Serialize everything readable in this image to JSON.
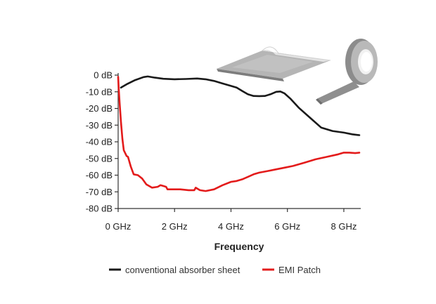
{
  "chart_data": {
    "type": "line",
    "title": "",
    "xlabel": "Frequency",
    "ylabel": "",
    "xlim": [
      0,
      8.6
    ],
    "ylim": [
      -80,
      0
    ],
    "x_ticks": [
      0,
      2,
      4,
      6,
      8
    ],
    "x_tick_labels": [
      "0 GHz",
      "2 GHz",
      "4 GHz",
      "6 GHz",
      "8 GHz"
    ],
    "y_ticks": [
      0,
      -10,
      -20,
      -30,
      -40,
      -50,
      -60,
      -70,
      -80
    ],
    "y_tick_labels": [
      "0 dB",
      "-10 dB",
      "-20 dB",
      "-30 dB",
      "-40 dB",
      "-50 dB",
      "-60 dB",
      "-70 dB",
      "-80 dB"
    ],
    "grid": false,
    "legend_position": "bottom",
    "series": [
      {
        "name": "conventional absorber sheet",
        "color": "#1a1a1a",
        "x": [
          0.1,
          0.3,
          0.6,
          0.9,
          1.05,
          1.3,
          1.6,
          2.0,
          2.4,
          2.8,
          3.1,
          3.4,
          3.7,
          4.0,
          4.2,
          4.4,
          4.6,
          4.8,
          5.0,
          5.2,
          5.4,
          5.6,
          5.75,
          5.9,
          6.1,
          6.4,
          6.8,
          7.2,
          7.6,
          8.0,
          8.3,
          8.55
        ],
        "y": [
          -7.5,
          -5.5,
          -3,
          -1.2,
          -0.8,
          -1.5,
          -2.2,
          -2.5,
          -2.3,
          -2,
          -2.5,
          -3.5,
          -5,
          -6.5,
          -7.5,
          -9.5,
          -11.5,
          -12.5,
          -12.6,
          -12.5,
          -11.5,
          -10,
          -9.8,
          -11,
          -14,
          -19.5,
          -25.5,
          -31.5,
          -33.5,
          -34.5,
          -35.5,
          -36
        ]
      },
      {
        "name": "EMI Patch",
        "color": "#e31b1b",
        "x": [
          0.0,
          0.02,
          0.05,
          0.1,
          0.15,
          0.2,
          0.3,
          0.35,
          0.45,
          0.55,
          0.7,
          0.85,
          1.0,
          1.2,
          1.4,
          1.5,
          1.6,
          1.7,
          1.75,
          2.0,
          2.2,
          2.5,
          2.7,
          2.75,
          2.8,
          2.9,
          3.1,
          3.4,
          3.7,
          4.0,
          4.2,
          4.4,
          4.6,
          4.8,
          5.0,
          5.3,
          5.6,
          5.9,
          6.2,
          6.6,
          7.0,
          7.4,
          7.8,
          8.0,
          8.2,
          8.4,
          8.55
        ],
        "y": [
          -1,
          -8,
          -16,
          -28,
          -38,
          -45,
          -48.5,
          -49,
          -55,
          -59.5,
          -60,
          -62,
          -65.5,
          -67.5,
          -67,
          -66,
          -66.5,
          -67,
          -68.5,
          -68.5,
          -68.5,
          -69,
          -69,
          -67.5,
          -68,
          -69,
          -69.5,
          -68.5,
          -66,
          -64,
          -63.5,
          -62.5,
          -61,
          -59.5,
          -58.5,
          -57.5,
          -56.5,
          -55.5,
          -54.5,
          -52.5,
          -50.5,
          -49,
          -47.5,
          -46.5,
          -46.5,
          -46.8,
          -46.5
        ]
      }
    ]
  },
  "illustrations": {
    "sheet": {
      "icon": "absorber-sheet-icon",
      "colors": [
        "#7a7a7a",
        "#a8a8a8",
        "#d6d6d6"
      ]
    },
    "tape_roll": {
      "icon": "tape-roll-icon",
      "colors": [
        "#8a8a8a",
        "#b3b3b3",
        "#e6e6e6"
      ]
    }
  }
}
